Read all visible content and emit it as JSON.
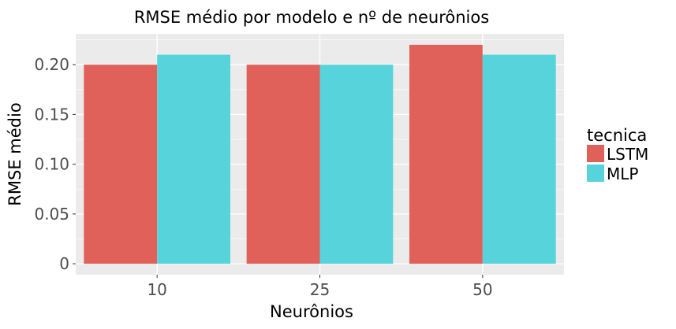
{
  "chart_data": {
    "type": "bar",
    "title": "RMSE médio por modelo e nº de neurônios",
    "xlabel": "Neurônios",
    "ylabel": "RMSE médio",
    "categories": [
      "10",
      "25",
      "50"
    ],
    "series": [
      {
        "name": "LSTM",
        "color": "#e0605a",
        "values": [
          0.2,
          0.2,
          0.22
        ]
      },
      {
        "name": "MLP",
        "color": "#57d4db",
        "values": [
          0.21,
          0.2,
          0.21
        ]
      }
    ],
    "ylim": [
      -0.011,
      0.231
    ],
    "yticks": [
      0,
      0.05,
      0.1,
      0.15,
      0.2
    ],
    "ytick_labels": [
      "0",
      "0.05",
      "0.10",
      "0.15",
      "0.20"
    ],
    "legend": {
      "title": "tecnica",
      "position": "right"
    },
    "grid": true,
    "panel_background": "#ebebeb"
  }
}
